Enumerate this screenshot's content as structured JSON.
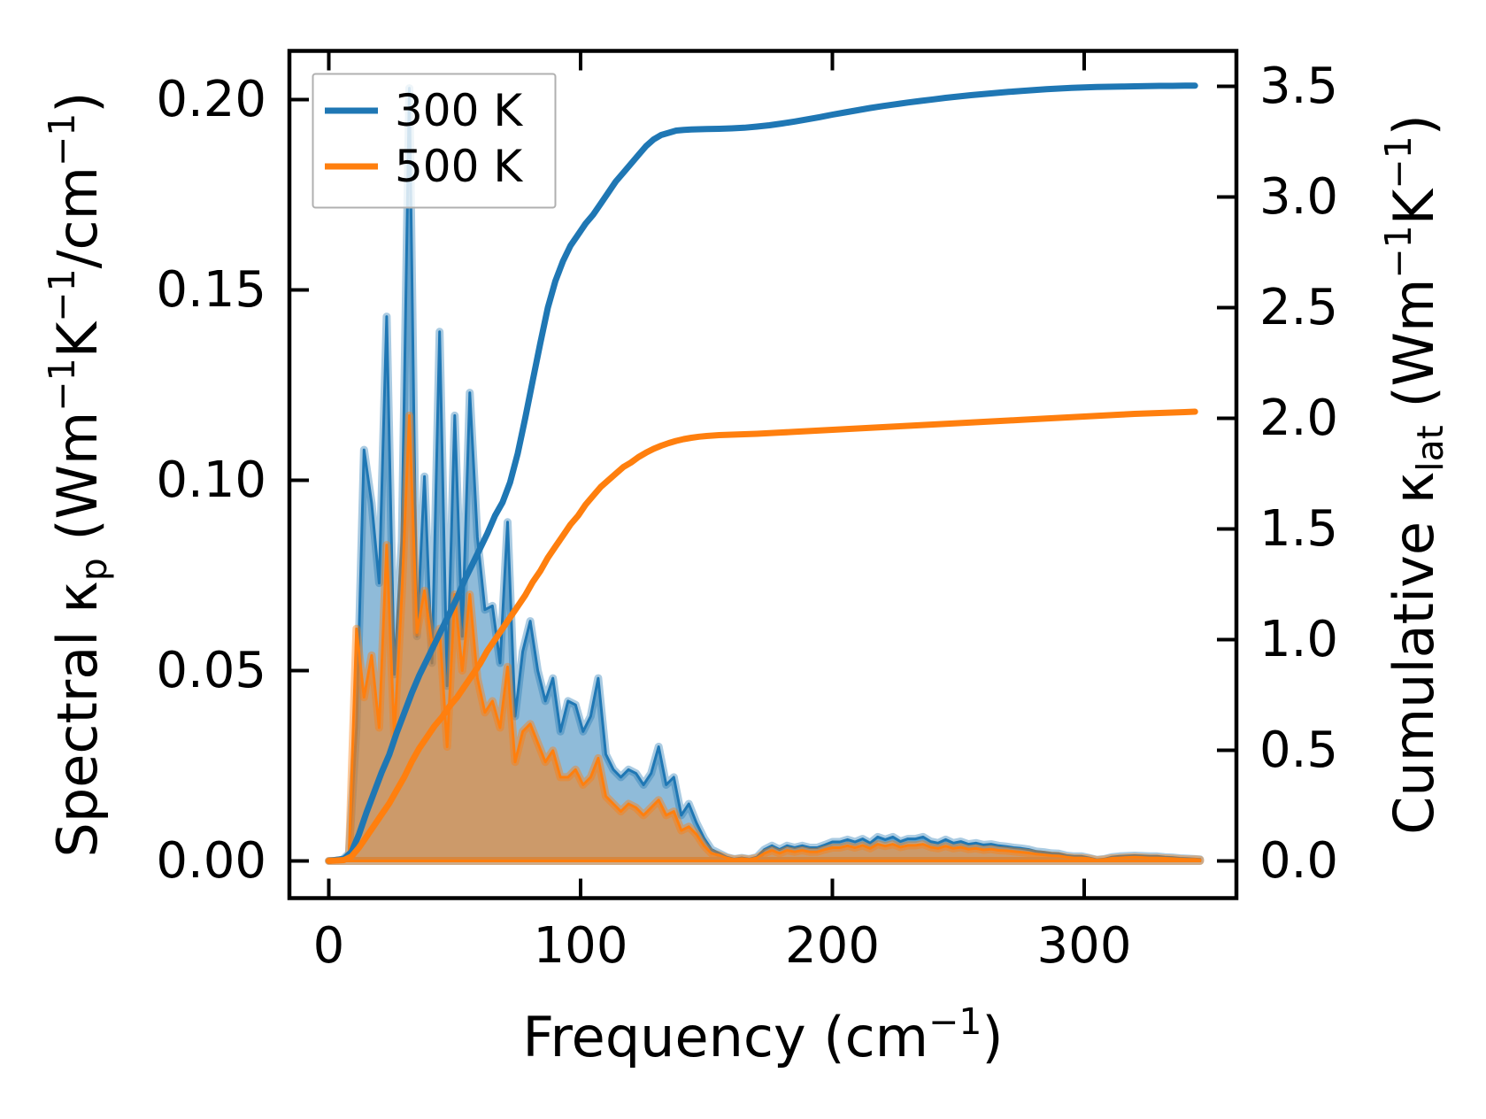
{
  "figure": {
    "background": "#ffffff",
    "text_color": "#000000"
  },
  "legend": {
    "position": "upper left",
    "border_color": "#b0b0b0",
    "entries": [
      {
        "label": "300 K",
        "color": "#1f77b4"
      },
      {
        "label": "500 K",
        "color": "#ff7f0e"
      }
    ]
  },
  "chart_data": {
    "type": "area",
    "title": "",
    "grid": false,
    "legend_position": "upper left",
    "xlabel_parts": [
      {
        "t": "Frequency (cm"
      },
      {
        "t": "−1",
        "m": "sup"
      },
      {
        "t": ")"
      }
    ],
    "ylabel_left_parts": [
      {
        "t": "Spectral κ"
      },
      {
        "t": "p",
        "m": "sub"
      },
      {
        "t": " (Wm"
      },
      {
        "t": "−1",
        "m": "sup"
      },
      {
        "t": "K"
      },
      {
        "t": "−1",
        "m": "sup"
      },
      {
        "t": "/cm"
      },
      {
        "t": "−1",
        "m": "sup"
      },
      {
        "t": ")"
      }
    ],
    "ylabel_right_parts": [
      {
        "t": "Cumulative κ"
      },
      {
        "t": "lat",
        "m": "sub"
      },
      {
        "t": " (Wm"
      },
      {
        "t": "−1",
        "m": "sup"
      },
      {
        "t": "K"
      },
      {
        "t": "−1",
        "m": "sup"
      },
      {
        "t": ")"
      }
    ],
    "x_axis": {
      "min": -16,
      "max": 360,
      "ticks": [
        0,
        100,
        200,
        300
      ],
      "tick_labels": [
        "0",
        "100",
        "200",
        "300"
      ]
    },
    "y_left": {
      "min": -0.01,
      "max": 0.2125,
      "ticks": [
        0,
        0.05,
        0.1,
        0.15,
        0.2
      ],
      "tick_labels": [
        "0.00",
        "0.05",
        "0.10",
        "0.15",
        "0.20"
      ]
    },
    "y_right": {
      "min": -0.17,
      "max": 3.66,
      "ticks": [
        0,
        0.5,
        1.0,
        1.5,
        2.0,
        2.5,
        3.0,
        3.5
      ],
      "tick_labels": [
        "0.0",
        "0.5",
        "1.0",
        "1.5",
        "2.0",
        "2.5",
        "3.0",
        "3.5"
      ]
    },
    "series": [
      {
        "name": "300 K spectral",
        "axis": "left",
        "style": "filled_area",
        "color": "#1f77b4",
        "fill_alpha": 0.5,
        "halo_alpha": 0.38,
        "x": [
          0,
          5,
          8,
          11,
          14,
          17,
          20,
          23,
          26,
          29,
          32,
          35,
          38,
          41,
          44,
          47,
          50,
          53,
          56,
          59,
          62,
          65,
          68,
          71,
          74,
          77,
          80,
          83,
          86,
          89,
          92,
          95,
          98,
          101,
          104,
          107,
          110,
          113,
          116,
          119,
          122,
          125,
          128,
          131,
          134,
          137,
          140,
          143,
          146,
          149,
          152,
          155,
          158,
          161,
          164,
          167,
          170,
          173,
          176,
          179,
          182,
          185,
          188,
          191,
          194,
          197,
          200,
          203,
          206,
          209,
          212,
          215,
          218,
          221,
          224,
          227,
          230,
          233,
          236,
          239,
          242,
          245,
          248,
          251,
          254,
          257,
          260,
          263,
          266,
          269,
          272,
          275,
          278,
          281,
          284,
          287,
          290,
          293,
          296,
          299,
          302,
          305,
          308,
          311,
          314,
          317,
          320,
          323,
          326,
          329,
          332,
          335,
          338,
          341,
          344,
          346
        ],
        "y": [
          0,
          0,
          0.002,
          0.035,
          0.108,
          0.094,
          0.073,
          0.143,
          0.049,
          0.084,
          0.203,
          0.059,
          0.101,
          0.052,
          0.139,
          0.046,
          0.117,
          0.059,
          0.123,
          0.085,
          0.066,
          0.067,
          0.052,
          0.089,
          0.038,
          0.055,
          0.063,
          0.05,
          0.042,
          0.048,
          0.034,
          0.042,
          0.041,
          0.034,
          0.038,
          0.048,
          0.028,
          0.024,
          0.022,
          0.024,
          0.023,
          0.02,
          0.023,
          0.03,
          0.02,
          0.022,
          0.012,
          0.015,
          0.01,
          0.006,
          0.003,
          0.002,
          0.001,
          0.0005,
          0.0008,
          0.0005,
          0.001,
          0.003,
          0.004,
          0.003,
          0.004,
          0.0035,
          0.004,
          0.0035,
          0.0035,
          0.0042,
          0.005,
          0.005,
          0.0056,
          0.005,
          0.0058,
          0.0047,
          0.0063,
          0.0056,
          0.0063,
          0.0051,
          0.0058,
          0.0058,
          0.0063,
          0.0051,
          0.0047,
          0.0056,
          0.0047,
          0.0051,
          0.0044,
          0.0047,
          0.0042,
          0.0044,
          0.004,
          0.0038,
          0.0035,
          0.0033,
          0.003,
          0.0025,
          0.0023,
          0.002,
          0.0019,
          0.0014,
          0.0012,
          0.0012,
          0.0008,
          0.0003,
          0.0005,
          0.001,
          0.0012,
          0.0013,
          0.0014,
          0.0013,
          0.0012,
          0.0012,
          0.001,
          0.0009,
          0.0007,
          0.0006,
          0.0005,
          0.0004
        ]
      },
      {
        "name": "500 K spectral",
        "axis": "left",
        "style": "filled_area",
        "color": "#ff7f0e",
        "fill_alpha": 0.55,
        "halo_alpha": 0.42,
        "x": [
          0,
          5,
          8,
          11,
          14,
          17,
          20,
          23,
          26,
          29,
          32,
          35,
          38,
          41,
          44,
          47,
          50,
          53,
          56,
          59,
          62,
          65,
          68,
          71,
          74,
          77,
          80,
          83,
          86,
          89,
          92,
          95,
          98,
          101,
          104,
          107,
          110,
          113,
          116,
          119,
          122,
          125,
          128,
          131,
          134,
          137,
          140,
          143,
          146,
          149,
          152,
          155,
          158,
          161,
          164,
          167,
          170,
          173,
          176,
          179,
          182,
          185,
          188,
          191,
          194,
          197,
          200,
          203,
          206,
          209,
          212,
          215,
          218,
          221,
          224,
          227,
          230,
          233,
          236,
          239,
          242,
          245,
          248,
          251,
          254,
          257,
          260,
          263,
          266,
          269,
          272,
          275,
          278,
          281,
          284,
          287,
          290,
          293,
          296,
          299,
          302,
          305,
          308,
          311,
          314,
          317,
          320,
          323,
          326,
          329,
          332,
          335,
          338,
          341,
          344,
          346
        ],
        "y": [
          0,
          0,
          0.001,
          0.061,
          0.043,
          0.054,
          0.035,
          0.083,
          0.033,
          0.07,
          0.117,
          0.06,
          0.071,
          0.057,
          0.061,
          0.03,
          0.07,
          0.05,
          0.07,
          0.048,
          0.039,
          0.042,
          0.035,
          0.051,
          0.026,
          0.034,
          0.036,
          0.031,
          0.026,
          0.029,
          0.022,
          0.022,
          0.024,
          0.02,
          0.022,
          0.027,
          0.017,
          0.015,
          0.013,
          0.015,
          0.014,
          0.012,
          0.014,
          0.016,
          0.012,
          0.013,
          0.008,
          0.009,
          0.007,
          0.004,
          0.002,
          0.0015,
          0.0008,
          0.0004,
          0.0006,
          0.0004,
          0.0008,
          0.002,
          0.0028,
          0.002,
          0.0028,
          0.0024,
          0.0028,
          0.0024,
          0.0024,
          0.003,
          0.0035,
          0.0035,
          0.004,
          0.0035,
          0.0041,
          0.0033,
          0.0044,
          0.0039,
          0.0044,
          0.0036,
          0.0041,
          0.0041,
          0.0044,
          0.0036,
          0.0033,
          0.0039,
          0.0033,
          0.0036,
          0.0031,
          0.0033,
          0.0029,
          0.0031,
          0.0028,
          0.0027,
          0.0025,
          0.0023,
          0.0021,
          0.0018,
          0.0016,
          0.0014,
          0.0013,
          0.001,
          0.0008,
          0.0008,
          0.0006,
          0.0002,
          0.0004,
          0.0007,
          0.0008,
          0.0009,
          0.001,
          0.0009,
          0.0008,
          0.0008,
          0.0007,
          0.0006,
          0.0005,
          0.0004,
          0.0004,
          0.0003
        ]
      },
      {
        "name": "300 K cumulative",
        "axis": "right",
        "style": "line",
        "color": "#1f77b4",
        "x": [
          0,
          6,
          9,
          12,
          15,
          18,
          21,
          24,
          27,
          30,
          33,
          36,
          39,
          42,
          45,
          48,
          51,
          54,
          57,
          60,
          63,
          66,
          69,
          72,
          75,
          78,
          81,
          84,
          87,
          90,
          93,
          96,
          99,
          102,
          105,
          108,
          111,
          114,
          117,
          120,
          123,
          126,
          129,
          132,
          135,
          138,
          141,
          144,
          147,
          150,
          155,
          160,
          165,
          170,
          175,
          180,
          185,
          190,
          195,
          200,
          205,
          210,
          215,
          220,
          225,
          230,
          235,
          240,
          245,
          250,
          255,
          260,
          265,
          270,
          275,
          280,
          285,
          290,
          295,
          300,
          305,
          310,
          315,
          320,
          325,
          330,
          335,
          340,
          344
        ],
        "y": [
          0,
          0.01,
          0.04,
          0.12,
          0.22,
          0.31,
          0.4,
          0.48,
          0.58,
          0.67,
          0.76,
          0.84,
          0.91,
          0.98,
          1.05,
          1.12,
          1.19,
          1.27,
          1.34,
          1.41,
          1.48,
          1.56,
          1.62,
          1.71,
          1.84,
          2.0,
          2.17,
          2.34,
          2.5,
          2.62,
          2.71,
          2.78,
          2.83,
          2.88,
          2.92,
          2.97,
          3.02,
          3.07,
          3.11,
          3.15,
          3.19,
          3.23,
          3.26,
          3.28,
          3.29,
          3.3,
          3.303,
          3.305,
          3.306,
          3.307,
          3.308,
          3.31,
          3.313,
          3.318,
          3.324,
          3.332,
          3.341,
          3.351,
          3.361,
          3.372,
          3.382,
          3.392,
          3.402,
          3.411,
          3.419,
          3.427,
          3.434,
          3.441,
          3.448,
          3.454,
          3.46,
          3.465,
          3.47,
          3.475,
          3.479,
          3.483,
          3.487,
          3.49,
          3.493,
          3.495,
          3.497,
          3.498,
          3.499,
          3.5,
          3.501,
          3.502,
          3.502,
          3.503,
          3.503
        ]
      },
      {
        "name": "500 K cumulative",
        "axis": "right",
        "style": "line",
        "color": "#ff7f0e",
        "x": [
          0,
          6,
          9,
          12,
          15,
          18,
          21,
          24,
          27,
          30,
          33,
          36,
          39,
          42,
          45,
          48,
          51,
          54,
          57,
          60,
          63,
          66,
          69,
          72,
          75,
          78,
          81,
          84,
          87,
          90,
          93,
          96,
          99,
          102,
          105,
          108,
          111,
          114,
          117,
          120,
          123,
          126,
          129,
          132,
          135,
          138,
          141,
          144,
          147,
          150,
          155,
          160,
          165,
          170,
          175,
          180,
          185,
          190,
          195,
          200,
          205,
          210,
          215,
          220,
          225,
          230,
          235,
          240,
          245,
          250,
          255,
          260,
          265,
          270,
          275,
          280,
          285,
          290,
          295,
          300,
          305,
          310,
          315,
          320,
          325,
          330,
          335,
          340,
          344
        ],
        "y": [
          0,
          0.004,
          0.02,
          0.06,
          0.11,
          0.16,
          0.21,
          0.26,
          0.32,
          0.38,
          0.45,
          0.51,
          0.56,
          0.61,
          0.65,
          0.7,
          0.74,
          0.79,
          0.84,
          0.89,
          0.95,
          1.0,
          1.05,
          1.1,
          1.15,
          1.2,
          1.26,
          1.31,
          1.37,
          1.42,
          1.47,
          1.52,
          1.56,
          1.61,
          1.65,
          1.69,
          1.72,
          1.75,
          1.78,
          1.8,
          1.825,
          1.845,
          1.862,
          1.876,
          1.888,
          1.898,
          1.906,
          1.912,
          1.917,
          1.92,
          1.924,
          1.926,
          1.928,
          1.93,
          1.933,
          1.936,
          1.939,
          1.942,
          1.945,
          1.948,
          1.951,
          1.954,
          1.957,
          1.96,
          1.963,
          1.966,
          1.969,
          1.972,
          1.975,
          1.978,
          1.981,
          1.984,
          1.987,
          1.99,
          1.993,
          1.996,
          1.999,
          2.002,
          2.005,
          2.008,
          2.011,
          2.014,
          2.017,
          2.02,
          2.022,
          2.024,
          2.026,
          2.028,
          2.03
        ]
      }
    ]
  }
}
